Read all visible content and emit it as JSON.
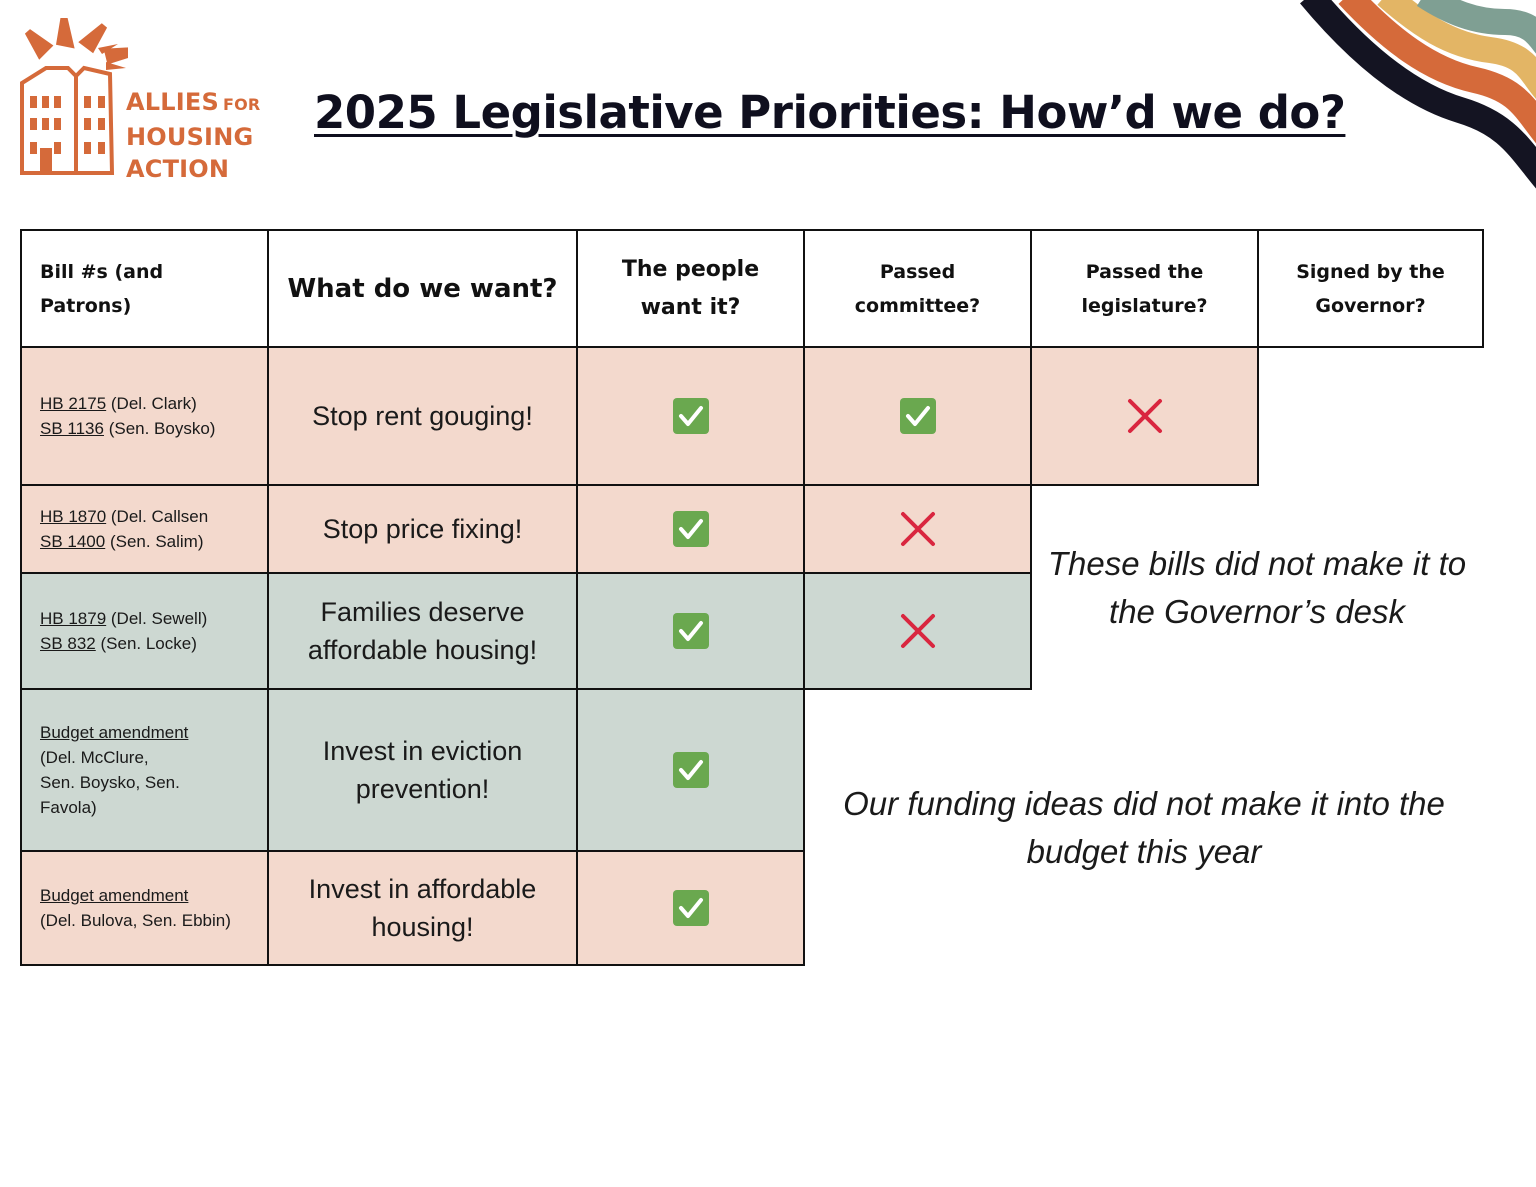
{
  "logo": {
    "line1": "ALLIES",
    "line1_small": "FOR",
    "line2": "HOUSING",
    "line3": "ACTION",
    "color": "#d56a3a"
  },
  "title": "2025 Legislative Priorities: How’d we do?",
  "table": {
    "headers": {
      "bill": "Bill #s (and Patrons)",
      "want": "What do we want?",
      "people": "The people want it?",
      "committee": "Passed committee?",
      "legislature": "Passed the legislature?",
      "governor": "Signed by the Governor?"
    },
    "rows": [
      {
        "line1_num": "HB 2175",
        "line1_rest": " (Del. Clark)",
        "line2_num": "SB 1136",
        "line2_rest": " (Sen. Boysko)",
        "want": "Stop rent gouging!",
        "people": "yes",
        "committee": "yes",
        "legislature": "no",
        "color": "#f3d9cd"
      },
      {
        "line1_num": "HB 1870",
        "line1_rest": " (Del. Callsen",
        "line2_num": "SB 1400",
        "line2_rest": " (Sen. Salim)",
        "want": "Stop price fixing!",
        "people": "yes",
        "committee": "no",
        "color": "#f3d9cd"
      },
      {
        "line1_num": "HB 1879",
        "line1_rest": " (Del. Sewell)",
        "line2_num": "SB 832",
        "line2_rest": " (Sen. Locke)",
        "want": "Families deserve affordable housing!",
        "people": "yes",
        "committee": "no",
        "color": "#cdd8d2"
      },
      {
        "line1_num": "Budget amendment ",
        "line2_rest": "(Del. McClure,",
        "line3_rest": "Sen. Boysko, Sen.",
        "line4_rest": "Favola)",
        "want": "Invest in eviction prevention!",
        "people": "yes",
        "color": "#cdd8d2"
      },
      {
        "line1_num": "Budget amendment",
        "line2_rest": "(Del. Bulova, Sen. Ebbin)",
        "want": "Invest in affordable housing!",
        "people": "yes",
        "color": "#f3d9cd"
      }
    ]
  },
  "notes": {
    "bills": "These bills did not make it to the Governor’s desk",
    "funding": "Our funding ideas did not make it into the budget this year"
  },
  "colors": {
    "check": "#6aa84f",
    "x": "#d9263f",
    "stripe_black": "#141422",
    "stripe_orange": "#d56a3a",
    "stripe_yellow": "#e3b565",
    "stripe_teal": "#7f9f93"
  }
}
